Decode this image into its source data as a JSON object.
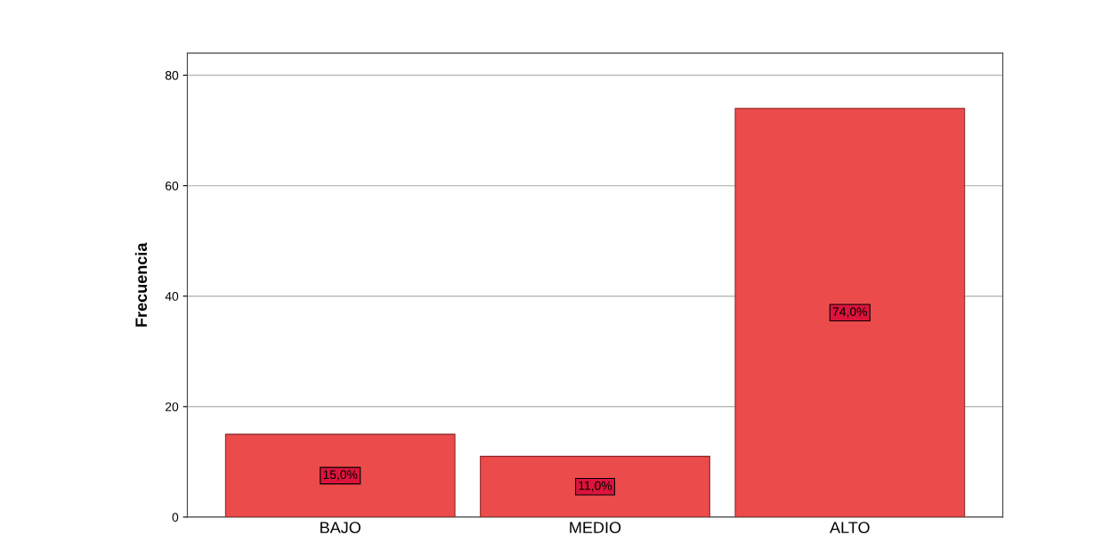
{
  "chart_data": {
    "type": "bar",
    "ylabel": "Frecuencia",
    "categories": [
      "BAJO",
      "MEDIO",
      "ALTO"
    ],
    "values": [
      15,
      11,
      74
    ],
    "color": "#ec4b4b",
    "value_labels": [
      "15,0%",
      "11,0%",
      "74,0%"
    ],
    "ylim": [
      0,
      84
    ],
    "yticks": [
      0,
      20,
      40,
      60,
      80
    ],
    "grid": "y"
  }
}
